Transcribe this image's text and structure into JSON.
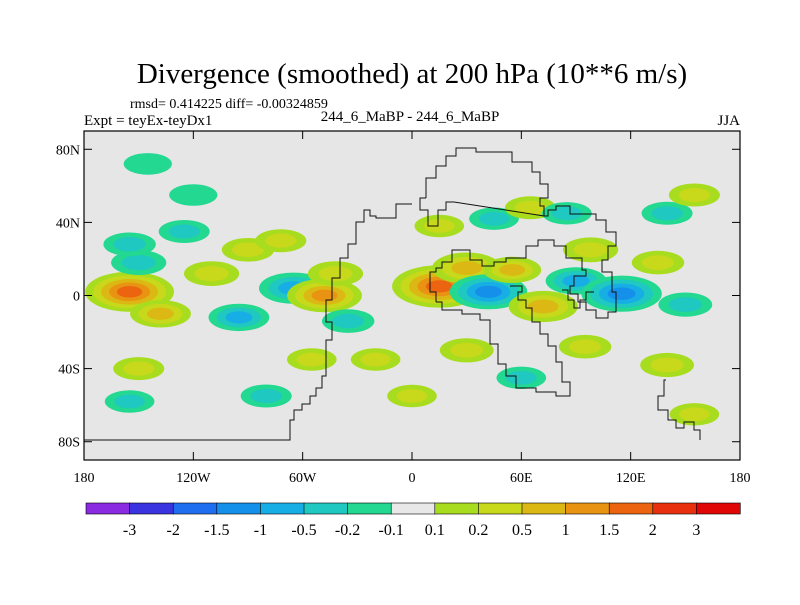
{
  "chart_data": {
    "type": "heatmap",
    "title": "Divergence (smoothed) at 200 hPa (10**6 m/s)",
    "stats_text": "rmsd= 0.414225 diff= -0.00324859",
    "left_subtitle": "Expt = teyEx-teyDx1",
    "center_subtitle": "244_6_MaBP - 244_6_MaBP",
    "right_subtitle": "JJA",
    "x_axis": {
      "range": [
        -180,
        180
      ],
      "ticks": [
        -180,
        -120,
        -60,
        0,
        60,
        120,
        180
      ],
      "tick_labels": [
        "180",
        "120W",
        "60W",
        "0",
        "60E",
        "120E",
        "180"
      ]
    },
    "y_axis": {
      "range": [
        -90,
        90
      ],
      "ticks": [
        80,
        40,
        0,
        -40,
        -80
      ],
      "tick_labels": [
        "80N",
        "40N",
        "0",
        "40S",
        "80S"
      ]
    },
    "colorbar": {
      "labels": [
        "-3",
        "-2",
        "-1.5",
        "-1",
        "-0.5",
        "-0.2",
        "-0.1",
        "0.1",
        "0.2",
        "0.5",
        "1",
        "1.5",
        "2",
        "3"
      ],
      "colors": [
        "#8a2be2",
        "#3a34e0",
        "#1f6ef0",
        "#1590ea",
        "#17aee5",
        "#1fc8c0",
        "#23d890",
        "#e8e8e8",
        "#a8dc1e",
        "#c8d81a",
        "#dcb814",
        "#e89412",
        "#ec6410",
        "#e8300e",
        "#e00606"
      ]
    },
    "anomalies": [
      {
        "lon": -155,
        "lat": 2,
        "value": 1.6
      },
      {
        "lon": -138,
        "lat": -10,
        "value": 0.6
      },
      {
        "lon": -150,
        "lat": 18,
        "value": -0.4
      },
      {
        "lon": -125,
        "lat": 35,
        "value": -0.25
      },
      {
        "lon": -155,
        "lat": 28,
        "value": -0.3
      },
      {
        "lon": -110,
        "lat": 12,
        "value": 0.4
      },
      {
        "lon": -90,
        "lat": 25,
        "value": 0.3
      },
      {
        "lon": -72,
        "lat": 30,
        "value": 0.25
      },
      {
        "lon": -65,
        "lat": 4,
        "value": -0.9
      },
      {
        "lon": -95,
        "lat": -12,
        "value": -0.6
      },
      {
        "lon": -48,
        "lat": 0,
        "value": 1.1
      },
      {
        "lon": -42,
        "lat": 12,
        "value": 0.4
      },
      {
        "lon": -35,
        "lat": -14,
        "value": -0.3
      },
      {
        "lon": -55,
        "lat": -35,
        "value": 0.2
      },
      {
        "lon": -80,
        "lat": -55,
        "value": -0.25
      },
      {
        "lon": -150,
        "lat": -40,
        "value": 0.25
      },
      {
        "lon": -155,
        "lat": -58,
        "value": -0.2
      },
      {
        "lon": -120,
        "lat": 55,
        "value": -0.15
      },
      {
        "lon": -20,
        "lat": -35,
        "value": 0.2
      },
      {
        "lon": 15,
        "lat": 5,
        "value": 1.8
      },
      {
        "lon": 30,
        "lat": 15,
        "value": 0.9
      },
      {
        "lon": 42,
        "lat": 2,
        "value": -1.2
      },
      {
        "lon": 55,
        "lat": 14,
        "value": 0.5
      },
      {
        "lon": 72,
        "lat": -6,
        "value": 0.9
      },
      {
        "lon": 90,
        "lat": 8,
        "value": -0.6
      },
      {
        "lon": 98,
        "lat": 25,
        "value": 0.4
      },
      {
        "lon": 115,
        "lat": 1,
        "value": -1.3
      },
      {
        "lon": 135,
        "lat": 18,
        "value": 0.3
      },
      {
        "lon": 150,
        "lat": -5,
        "value": -0.35
      },
      {
        "lon": 140,
        "lat": 45,
        "value": -0.25
      },
      {
        "lon": 155,
        "lat": 55,
        "value": 0.25
      },
      {
        "lon": 15,
        "lat": 38,
        "value": 0.2
      },
      {
        "lon": 45,
        "lat": 42,
        "value": -0.2
      },
      {
        "lon": 65,
        "lat": 48,
        "value": 0.25
      },
      {
        "lon": 85,
        "lat": 45,
        "value": -0.2
      },
      {
        "lon": 30,
        "lat": -30,
        "value": 0.35
      },
      {
        "lon": 95,
        "lat": -28,
        "value": 0.3
      },
      {
        "lon": 60,
        "lat": -45,
        "value": -0.2
      },
      {
        "lon": 140,
        "lat": -38,
        "value": 0.35
      },
      {
        "lon": 155,
        "lat": -65,
        "value": 0.2
      },
      {
        "lon": 0,
        "lat": -55,
        "value": 0.2
      },
      {
        "lon": -145,
        "lat": 72,
        "value": -0.15
      }
    ]
  }
}
